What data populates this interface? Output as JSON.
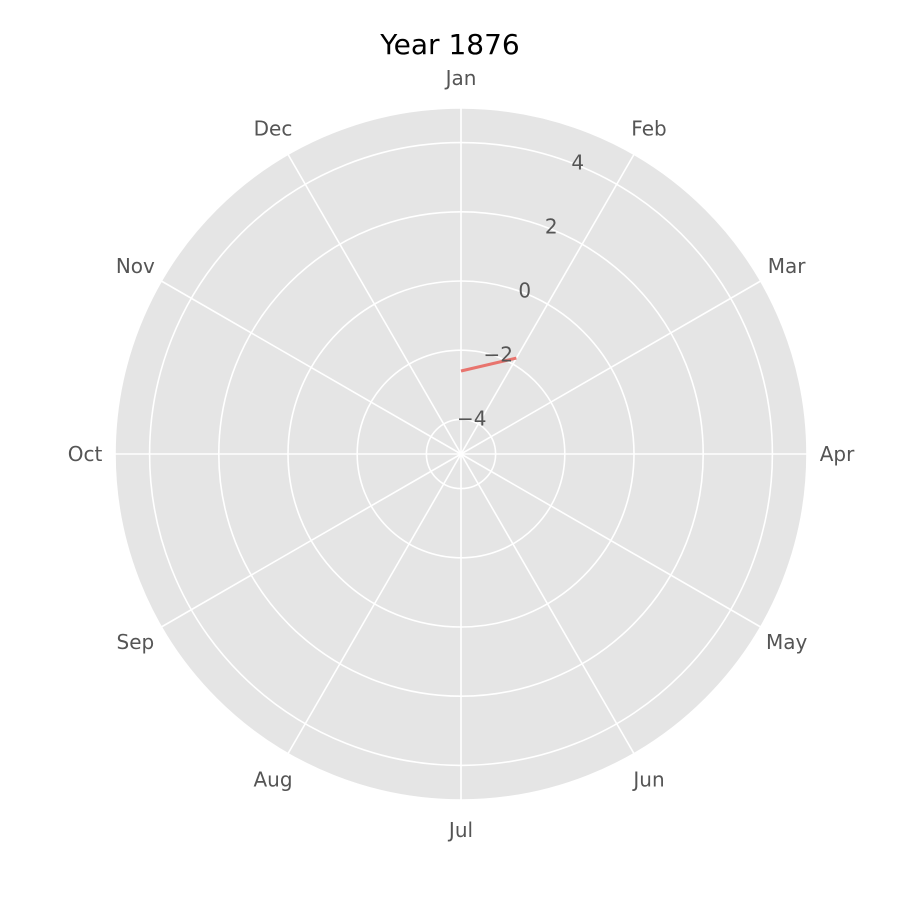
{
  "chart_data": {
    "type": "line",
    "projection": "polar",
    "title": "Year 1876",
    "xlabel": "",
    "ylabel": "",
    "angular_tick_labels": [
      "Jan",
      "Feb",
      "Mar",
      "Apr",
      "May",
      "Jun",
      "Jul",
      "Aug",
      "Sep",
      "Oct",
      "Nov",
      "Dec"
    ],
    "radial_tick_labels": [
      "−4",
      "−2",
      "0",
      "2",
      "4"
    ],
    "radial_tick_values": [
      -4,
      -2,
      0,
      2,
      4
    ],
    "rlim": [
      -5,
      5
    ],
    "direction": "clockwise",
    "zero_location": "top",
    "grid": true,
    "series": [
      {
        "color": "#E8746E",
        "x": [
          "Jan",
          "Feb"
        ],
        "y": [
          -2.6,
          -1.8
        ]
      }
    ]
  },
  "colors": {
    "plot_background": "#E5E5E5",
    "grid": "#FFFFFF",
    "tick_text": "#555555"
  }
}
